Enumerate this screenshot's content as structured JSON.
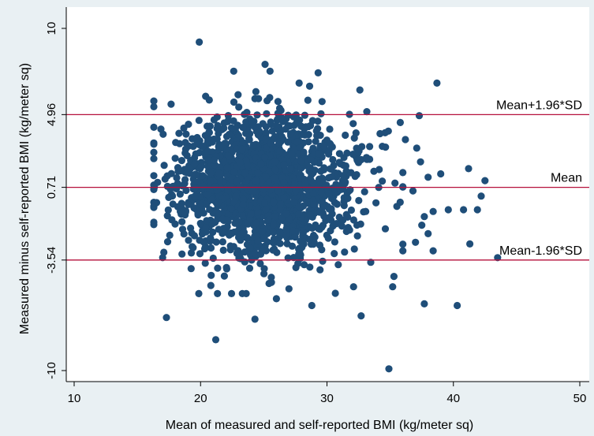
{
  "chart_data": {
    "type": "scatter",
    "title": "",
    "xlabel": "Mean of measured and self-reported BMI (kg/meter sq)",
    "ylabel": "Measured minus self-reported BMI (kg/meter sq)",
    "xlim": [
      10,
      50
    ],
    "ylim": [
      -10,
      10
    ],
    "x_ticks": [
      "10",
      "20",
      "30",
      "40",
      "50"
    ],
    "y_ticks": [
      "10",
      "4.96",
      "0.71",
      "-3.54",
      "-10"
    ],
    "y_tick_values": [
      10,
      4.96,
      0.71,
      -3.54,
      -10
    ],
    "grid": false,
    "legend": "none",
    "point_color": "#1f4e79",
    "line_color": "#b5103c",
    "reference_lines": [
      {
        "name": "Mean+1.96*SD",
        "y": 4.96
      },
      {
        "name": "Mean",
        "y": 0.71
      },
      {
        "name": "Mean-1.96*SD",
        "y": -3.54
      }
    ],
    "outlier_points": [
      {
        "x": 19.9,
        "y": 9.2
      },
      {
        "x": 25.1,
        "y": 7.9
      },
      {
        "x": 29.3,
        "y": 7.4
      },
      {
        "x": 38.7,
        "y": 6.8
      },
      {
        "x": 27.8,
        "y": 6.8
      },
      {
        "x": 32.6,
        "y": 6.4
      },
      {
        "x": 37.3,
        "y": 4.9
      },
      {
        "x": 35.8,
        "y": 4.5
      },
      {
        "x": 34.6,
        "y": 3.9
      },
      {
        "x": 36.2,
        "y": 3.5
      },
      {
        "x": 37.1,
        "y": 3.0
      },
      {
        "x": 37.4,
        "y": 2.2
      },
      {
        "x": 39.0,
        "y": 1.5
      },
      {
        "x": 41.2,
        "y": 1.8
      },
      {
        "x": 42.5,
        "y": 1.1
      },
      {
        "x": 38.0,
        "y": 1.3
      },
      {
        "x": 36.8,
        "y": 0.5
      },
      {
        "x": 42.2,
        "y": 0.2
      },
      {
        "x": 41.9,
        "y": -0.6
      },
      {
        "x": 40.8,
        "y": -0.6
      },
      {
        "x": 39.6,
        "y": -0.6
      },
      {
        "x": 38.4,
        "y": -0.7
      },
      {
        "x": 37.7,
        "y": -1.0
      },
      {
        "x": 37.5,
        "y": -1.5
      },
      {
        "x": 38.0,
        "y": -2.0
      },
      {
        "x": 37.0,
        "y": -2.5
      },
      {
        "x": 38.4,
        "y": -3.0
      },
      {
        "x": 41.3,
        "y": -2.6
      },
      {
        "x": 43.5,
        "y": -3.4
      },
      {
        "x": 36.0,
        "y": -3.0
      },
      {
        "x": 35.3,
        "y": -4.5
      },
      {
        "x": 35.2,
        "y": -5.1
      },
      {
        "x": 40.3,
        "y": -6.2
      },
      {
        "x": 37.7,
        "y": -6.1
      },
      {
        "x": 32.7,
        "y": -6.8
      },
      {
        "x": 34.9,
        "y": -9.9
      },
      {
        "x": 21.2,
        "y": -8.2
      },
      {
        "x": 17.3,
        "y": -6.9
      },
      {
        "x": 24.3,
        "y": -7.0
      },
      {
        "x": 26.0,
        "y": -5.8
      },
      {
        "x": 28.8,
        "y": -6.2
      },
      {
        "x": 32.1,
        "y": -5.1
      },
      {
        "x": 17.0,
        "y": -3.4
      },
      {
        "x": 16.6,
        "y": 1.0
      }
    ],
    "point_count_estimate": 1800,
    "bulk_distribution": {
      "x_mean": 24.5,
      "x_sd": 3.3,
      "y_mean": 0.8,
      "y_sd": 2.0
    }
  }
}
